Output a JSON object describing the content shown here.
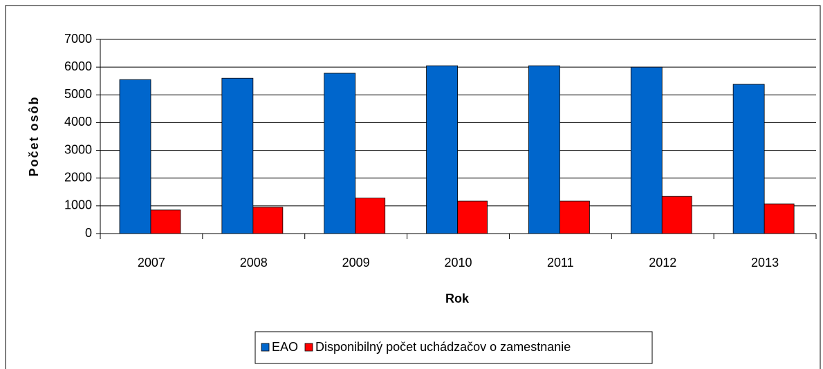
{
  "chart_data": {
    "type": "bar",
    "categories": [
      "2007",
      "2008",
      "2009",
      "2010",
      "2011",
      "2012",
      "2013"
    ],
    "series": [
      {
        "name": "EAO",
        "color": "#0066cc",
        "values": [
          5550,
          5600,
          5780,
          6050,
          6050,
          6000,
          5380
        ]
      },
      {
        "name": "Disponibilný počet uchádzačov o zamestnanie",
        "color": "#ff0000",
        "values": [
          850,
          950,
          1280,
          1170,
          1170,
          1340,
          1070
        ]
      }
    ],
    "xlabel": "Rok",
    "ylabel": "Počet osôb",
    "ylim": [
      0,
      7000
    ],
    "yticks": [
      0,
      1000,
      2000,
      3000,
      4000,
      5000,
      6000,
      7000
    ],
    "grid": true,
    "legend": "bottom"
  }
}
